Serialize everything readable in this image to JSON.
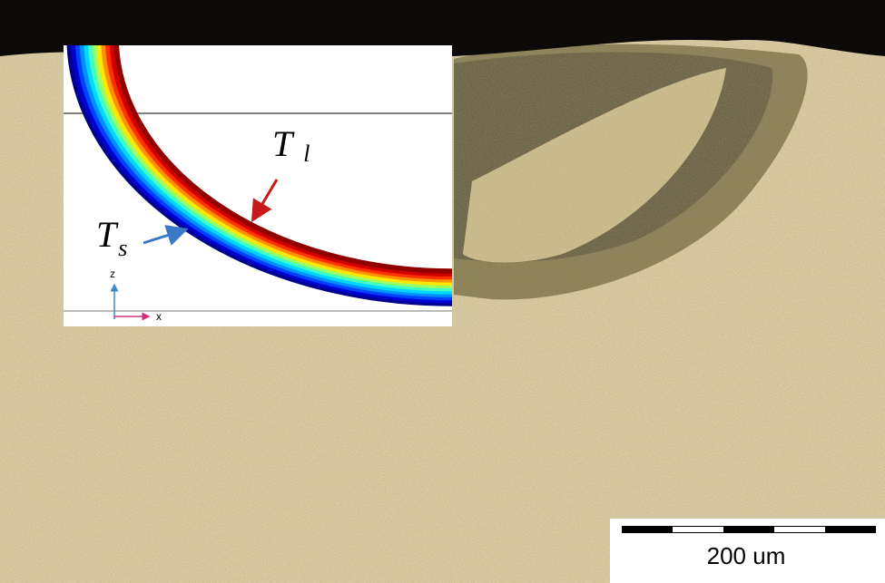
{
  "inset": {
    "liquidus_label": {
      "main": "T",
      "sub": "l"
    },
    "solidus_label": {
      "main": "T",
      "sub": "s"
    },
    "axes": {
      "z": "z",
      "x": "x"
    }
  },
  "scale_bar": {
    "label": "200 um"
  }
}
